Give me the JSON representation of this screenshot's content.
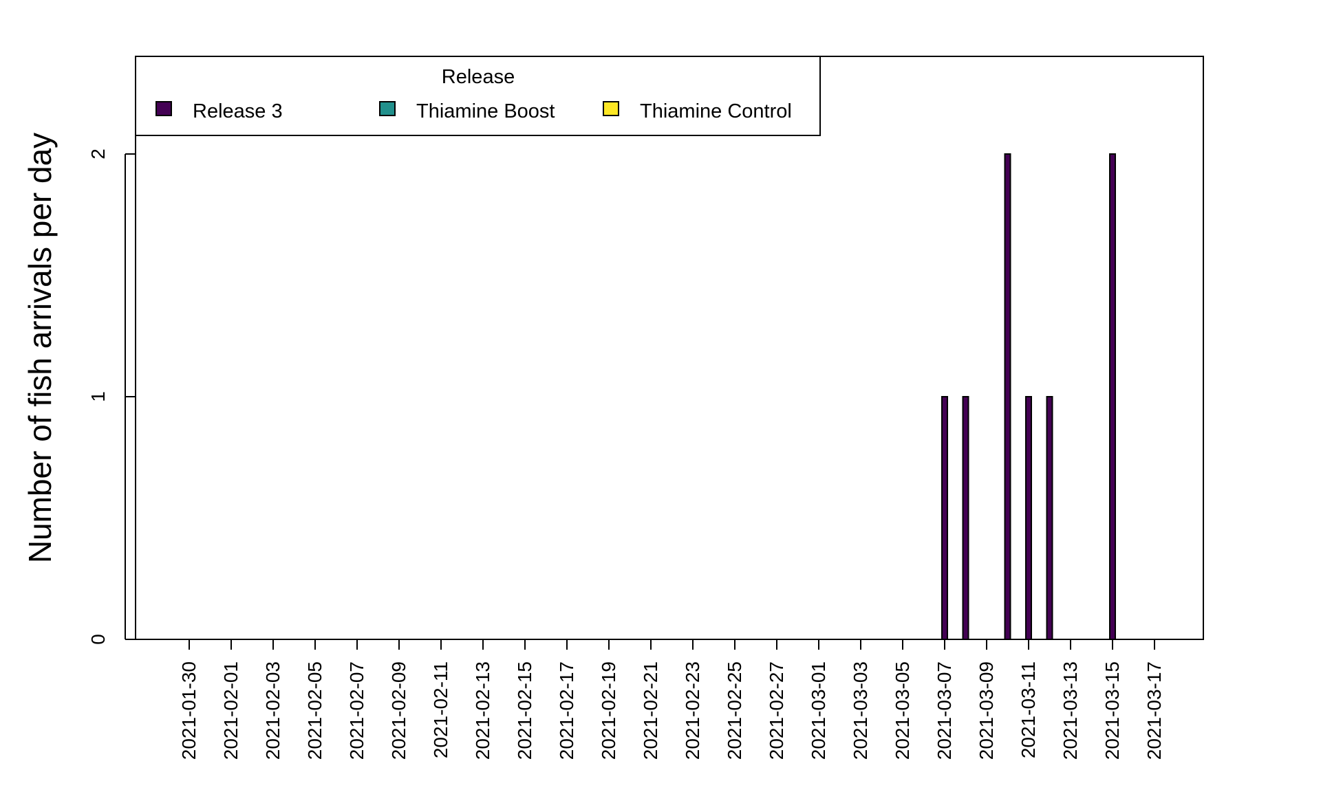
{
  "chart_data": {
    "type": "bar",
    "title": "",
    "xlabel": "",
    "ylabel": "Number of fish arrivals per day",
    "ylim": [
      0,
      2.4
    ],
    "y_ticks": [
      0,
      1,
      2
    ],
    "x_tick_labels": [
      "2021-01-30",
      "2021-02-01",
      "2021-02-03",
      "2021-02-05",
      "2021-02-07",
      "2021-02-09",
      "2021-02-11",
      "2021-02-13",
      "2021-02-15",
      "2021-02-17",
      "2021-02-19",
      "2021-02-21",
      "2021-02-23",
      "2021-02-25",
      "2021-02-27",
      "2021-03-01",
      "2021-03-03",
      "2021-03-05",
      "2021-03-07",
      "2021-03-09",
      "2021-03-11",
      "2021-03-13",
      "2021-03-15",
      "2021-03-17"
    ],
    "x_range": [
      "2021-01-28",
      "2021-03-19"
    ],
    "grid": false,
    "legend": {
      "title": "Release",
      "placement": "top-left"
    },
    "series": [
      {
        "name": "Release 3",
        "color": "#440154",
        "dates": [
          "2021-03-07",
          "2021-03-08",
          "2021-03-10",
          "2021-03-11",
          "2021-03-12",
          "2021-03-15"
        ],
        "values": [
          1,
          1,
          2,
          1,
          1,
          2
        ]
      },
      {
        "name": "Thiamine Boost",
        "color": "#21908C",
        "dates": [],
        "values": []
      },
      {
        "name": "Thiamine Control",
        "color": "#FDE725",
        "dates": [],
        "values": []
      }
    ]
  }
}
